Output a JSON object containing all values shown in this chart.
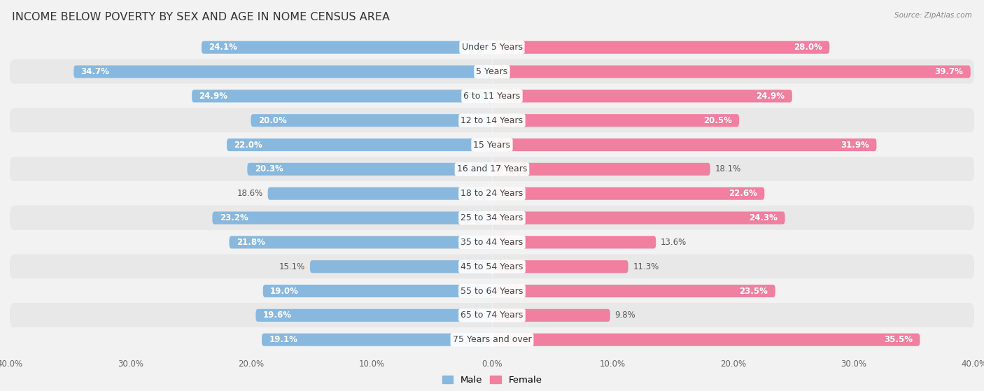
{
  "title": "INCOME BELOW POVERTY BY SEX AND AGE IN NOME CENSUS AREA",
  "source": "Source: ZipAtlas.com",
  "categories": [
    "Under 5 Years",
    "5 Years",
    "6 to 11 Years",
    "12 to 14 Years",
    "15 Years",
    "16 and 17 Years",
    "18 to 24 Years",
    "25 to 34 Years",
    "35 to 44 Years",
    "45 to 54 Years",
    "55 to 64 Years",
    "65 to 74 Years",
    "75 Years and over"
  ],
  "male_values": [
    24.1,
    34.7,
    24.9,
    20.0,
    22.0,
    20.3,
    18.6,
    23.2,
    21.8,
    15.1,
    19.0,
    19.6,
    19.1
  ],
  "female_values": [
    28.0,
    39.7,
    24.9,
    20.5,
    31.9,
    18.1,
    22.6,
    24.3,
    13.6,
    11.3,
    23.5,
    9.8,
    35.5
  ],
  "male_color": "#88b8de",
  "female_color": "#f07fa0",
  "male_label": "Male",
  "female_label": "Female",
  "xlim": 40.0,
  "bar_height": 0.52,
  "row_colors": [
    "#f2f2f2",
    "#e8e8e8"
  ],
  "title_fontsize": 11.5,
  "label_fontsize": 9,
  "value_fontsize": 8.5,
  "axis_fontsize": 8.5,
  "legend_fontsize": 9.5
}
